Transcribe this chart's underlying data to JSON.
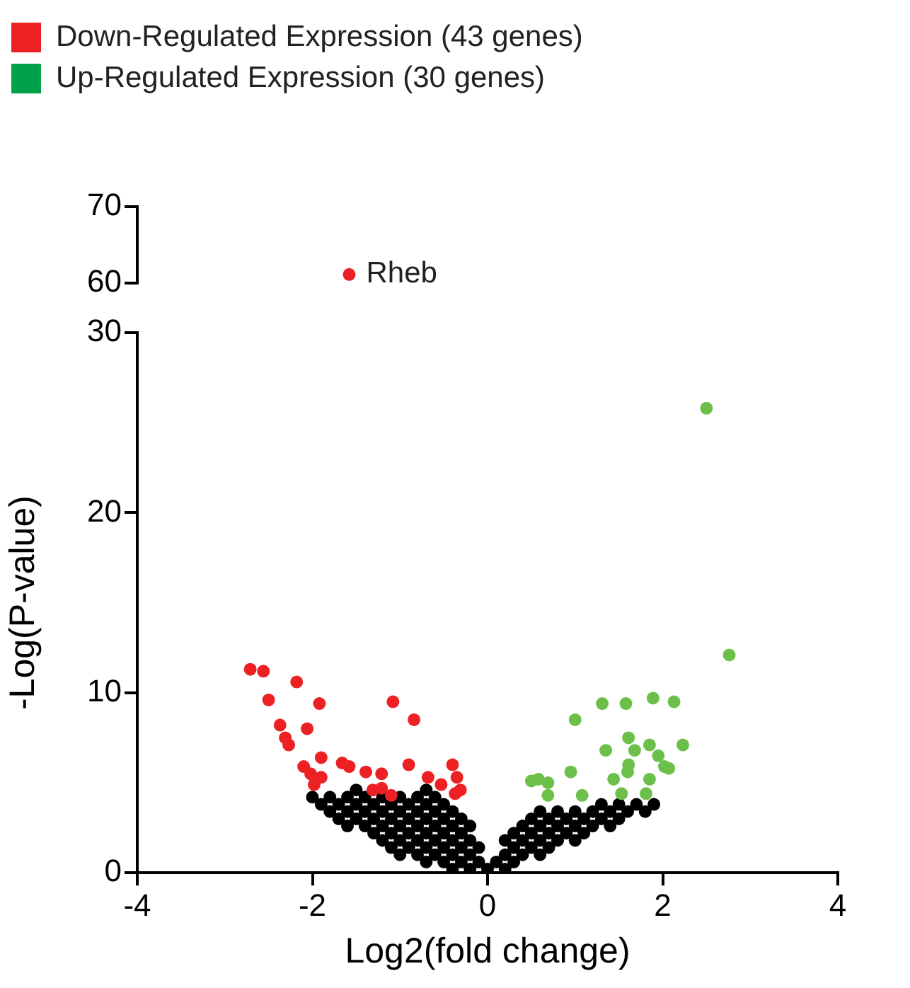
{
  "chart_data": [
    {
      "type": "scatter",
      "xlim": [
        -4,
        4
      ],
      "ylim": [
        60,
        70
      ],
      "yticks": [
        60,
        70
      ],
      "tick_labels": "y",
      "grid": false,
      "legend": "top left",
      "marker": "circle",
      "annotations": [
        {
          "text": "Rheb",
          "x": -1.58,
          "y": 61.1
        }
      ],
      "series": [
        {
          "name": "Down-Regulated Expression (43 genes)",
          "color": "#ed2024",
          "x": [
            -1.58
          ],
          "values": [
            61.1
          ]
        },
        {
          "name": "Up-Regulated Expression (30 genes)",
          "color": "#00a14b"
        }
      ]
    },
    {
      "type": "scatter",
      "xlim": [
        -4,
        4
      ],
      "xticks": [
        -4,
        -2,
        0,
        2,
        4
      ],
      "ylim": [
        0,
        30
      ],
      "yticks": [
        0,
        10,
        20,
        30
      ],
      "xlabel": "Log2(fold change)",
      "ylabel": "-Log(P-value)",
      "grid": false,
      "legend": false,
      "marker": "circle",
      "series": [
        {
          "color": "#000000",
          "x": [
            -2.0,
            -1.9,
            -1.8,
            -1.8,
            -1.7,
            -1.7,
            -1.6,
            -1.6,
            -1.6,
            -1.5,
            -1.5,
            -1.5,
            -1.4,
            -1.4,
            -1.4,
            -1.3,
            -1.3,
            -1.3,
            -1.2,
            -1.2,
            -1.2,
            -1.2,
            -1.1,
            -1.1,
            -1.1,
            -1.1,
            -1.0,
            -1.0,
            -1.0,
            -1.0,
            -1.0,
            -0.9,
            -0.9,
            -0.9,
            -0.9,
            -0.8,
            -0.8,
            -0.8,
            -0.8,
            -0.8,
            -0.7,
            -0.7,
            -0.7,
            -0.7,
            -0.7,
            -0.7,
            -0.6,
            -0.6,
            -0.6,
            -0.6,
            -0.6,
            -0.5,
            -0.5,
            -0.5,
            -0.5,
            -0.5,
            -0.4,
            -0.4,
            -0.4,
            -0.4,
            -0.4,
            -0.3,
            -0.3,
            -0.3,
            -0.3,
            -0.2,
            -0.2,
            -0.2,
            -0.2,
            -0.1,
            -0.1,
            0.0,
            0.1,
            0.2,
            0.2,
            0.2,
            0.3,
            0.3,
            0.3,
            0.4,
            0.4,
            0.4,
            0.5,
            0.5,
            0.5,
            0.6,
            0.6,
            0.6,
            0.6,
            0.7,
            0.7,
            0.7,
            0.8,
            0.8,
            0.8,
            0.9,
            0.9,
            1.0,
            1.0,
            1.0,
            1.1,
            1.1,
            1.2,
            1.2,
            1.3,
            1.3,
            1.4,
            1.4,
            1.5,
            1.5,
            1.6,
            1.7,
            1.8,
            1.9
          ],
          "values": [
            4.2,
            3.8,
            3.4,
            4.2,
            3.0,
            3.8,
            2.6,
            3.4,
            4.2,
            3.0,
            3.8,
            4.6,
            2.6,
            3.4,
            4.2,
            2.2,
            3.0,
            3.8,
            1.8,
            2.6,
            3.4,
            4.2,
            1.4,
            2.2,
            3.0,
            3.8,
            1.0,
            1.8,
            2.6,
            3.4,
            4.2,
            1.4,
            2.2,
            3.0,
            3.8,
            1.0,
            1.8,
            2.6,
            3.4,
            4.2,
            0.6,
            1.4,
            2.2,
            3.0,
            3.8,
            4.6,
            1.0,
            1.8,
            2.6,
            3.4,
            4.2,
            0.6,
            1.4,
            2.2,
            3.0,
            3.8,
            0.2,
            1.0,
            1.8,
            2.6,
            3.4,
            0.6,
            1.4,
            2.2,
            3.0,
            0.2,
            1.0,
            1.8,
            2.6,
            0.6,
            1.4,
            0.2,
            0.6,
            0.2,
            1.0,
            1.8,
            0.6,
            1.4,
            2.2,
            1.0,
            1.8,
            2.6,
            1.4,
            2.2,
            3.0,
            1.0,
            1.8,
            2.6,
            3.4,
            1.4,
            2.2,
            3.0,
            1.8,
            2.6,
            3.4,
            2.2,
            3.0,
            1.8,
            2.6,
            3.4,
            2.2,
            3.0,
            2.6,
            3.4,
            3.0,
            3.8,
            2.6,
            3.4,
            3.0,
            3.8,
            3.4,
            3.8,
            3.4,
            3.8
          ]
        },
        {
          "color": "#ed2024",
          "x": [
            -2.71,
            -2.56,
            -2.18,
            -2.5,
            -1.92,
            -1.08,
            -0.84,
            -2.37,
            -2.06,
            -2.31,
            -2.27,
            -1.9,
            -2.1,
            -1.66,
            -1.58,
            -0.9,
            -0.4,
            -1.39,
            -1.21,
            -0.68,
            -0.35,
            -2.02,
            -1.9,
            -1.98,
            -1.21,
            -0.53,
            -0.31,
            -0.37,
            -1.1,
            -1.31
          ],
          "values": [
            11.3,
            11.2,
            10.6,
            9.6,
            9.4,
            9.5,
            8.5,
            8.2,
            8.0,
            7.5,
            7.1,
            6.4,
            5.9,
            6.1,
            5.9,
            6.0,
            6.0,
            5.6,
            5.5,
            5.3,
            5.3,
            5.5,
            5.3,
            4.9,
            4.7,
            4.9,
            4.6,
            4.4,
            4.3,
            4.6
          ]
        },
        {
          "color": "#6cc04a",
          "x": [
            2.5,
            2.76,
            1.31,
            1.58,
            1.89,
            2.13,
            1.0,
            1.61,
            1.35,
            1.68,
            1.85,
            2.23,
            1.95,
            1.61,
            1.6,
            2.02,
            2.07,
            0.95,
            1.44,
            1.85,
            0.5,
            0.58,
            0.69,
            0.69,
            1.53,
            1.81,
            1.08
          ],
          "values": [
            25.8,
            12.1,
            9.4,
            9.4,
            9.7,
            9.5,
            8.5,
            7.5,
            6.8,
            6.8,
            7.1,
            7.1,
            6.5,
            6.0,
            5.6,
            5.9,
            5.8,
            5.6,
            5.2,
            5.2,
            5.1,
            5.2,
            5.0,
            4.3,
            4.4,
            4.4,
            4.3
          ]
        }
      ]
    }
  ]
}
